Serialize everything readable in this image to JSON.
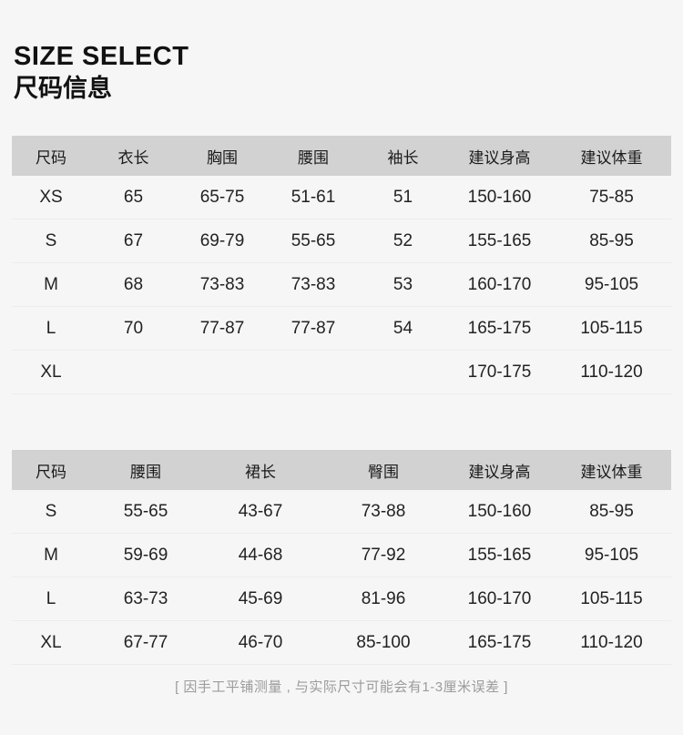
{
  "header": {
    "title_en": "SIZE SELECT",
    "title_zh": "尺码信息"
  },
  "colors": {
    "page_background": "#f6f6f6",
    "table_header_background": "#d2d2d2",
    "row_divider": "#ececec",
    "text": "#222222",
    "footer_text": "#9b9b9b"
  },
  "tables": [
    {
      "name": "top-garment-size-table",
      "columns": [
        "尺码",
        "衣长",
        "胸围",
        "腰围",
        "袖长",
        "建议身高",
        "建议体重"
      ],
      "rows": [
        [
          "XS",
          "65",
          "65-75",
          "51-61",
          "51",
          "150-160",
          "75-85"
        ],
        [
          "S",
          "67",
          "69-79",
          "55-65",
          "52",
          "155-165",
          "85-95"
        ],
        [
          "M",
          "68",
          "73-83",
          "73-83",
          "53",
          "160-170",
          "95-105"
        ],
        [
          "L",
          "70",
          "77-87",
          "77-87",
          "54",
          "165-175",
          "105-115"
        ],
        [
          "XL",
          "",
          "",
          "",
          "",
          "170-175",
          "110-120"
        ]
      ]
    },
    {
      "name": "skirt-size-table",
      "columns": [
        "尺码",
        "腰围",
        "裙长",
        "臀围",
        "建议身高",
        "建议体重"
      ],
      "rows": [
        [
          "S",
          "55-65",
          "43-67",
          "73-88",
          "150-160",
          "85-95"
        ],
        [
          "M",
          "59-69",
          "44-68",
          "77-92",
          "155-165",
          "95-105"
        ],
        [
          "L",
          "63-73",
          "45-69",
          "81-96",
          "160-170",
          "105-115"
        ],
        [
          "XL",
          "67-77",
          "46-70",
          "85-100",
          "165-175",
          "110-120"
        ]
      ]
    }
  ],
  "footer": {
    "note": "[ 因手工平铺测量 , 与实际尺寸可能会有1-3厘米误差 ]"
  }
}
